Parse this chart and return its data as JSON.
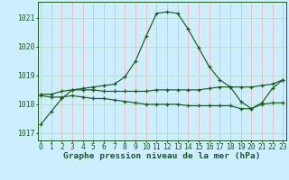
{
  "title": "Graphe pression niveau de la mer (hPa)",
  "hours": [
    0,
    1,
    2,
    3,
    4,
    5,
    6,
    7,
    8,
    9,
    10,
    11,
    12,
    13,
    14,
    15,
    16,
    17,
    18,
    19,
    20,
    21,
    22,
    23
  ],
  "xtick_labels": [
    "0",
    "1",
    "2",
    "3",
    "4",
    "5",
    "6",
    "7",
    "8",
    "9",
    "10",
    "11",
    "12",
    "13",
    "14",
    "15",
    "16",
    "17",
    "18",
    "19",
    "20",
    "21",
    "22",
    "23"
  ],
  "line1": [
    1017.3,
    1017.75,
    1018.2,
    1018.5,
    1018.55,
    1018.6,
    1018.65,
    1018.7,
    1018.95,
    1019.5,
    1020.35,
    1021.15,
    1021.2,
    1021.15,
    1020.6,
    1019.95,
    1019.3,
    1018.85,
    1018.6,
    1018.1,
    1017.85,
    1018.05,
    1018.55,
    1018.85
  ],
  "line2": [
    1018.35,
    1018.35,
    1018.45,
    1018.5,
    1018.5,
    1018.5,
    1018.45,
    1018.45,
    1018.45,
    1018.45,
    1018.45,
    1018.5,
    1018.5,
    1018.5,
    1018.5,
    1018.5,
    1018.55,
    1018.6,
    1018.6,
    1018.6,
    1018.6,
    1018.65,
    1018.7,
    1018.85
  ],
  "line3": [
    1018.3,
    1018.25,
    1018.25,
    1018.3,
    1018.25,
    1018.2,
    1018.2,
    1018.15,
    1018.1,
    1018.05,
    1018.0,
    1018.0,
    1018.0,
    1018.0,
    1017.95,
    1017.95,
    1017.95,
    1017.95,
    1017.95,
    1017.85,
    1017.85,
    1018.0,
    1018.05,
    1018.05
  ],
  "line_color": "#1a5c1a",
  "bg_color": "#cceeff",
  "grid_color_v": "#ffaaaa",
  "grid_color_h": "#b0ddd0",
  "ylim": [
    1016.75,
    1021.55
  ],
  "yticks": [
    1017,
    1018,
    1019,
    1020,
    1021
  ],
  "title_fontsize": 6.8,
  "tick_fontsize": 5.8
}
